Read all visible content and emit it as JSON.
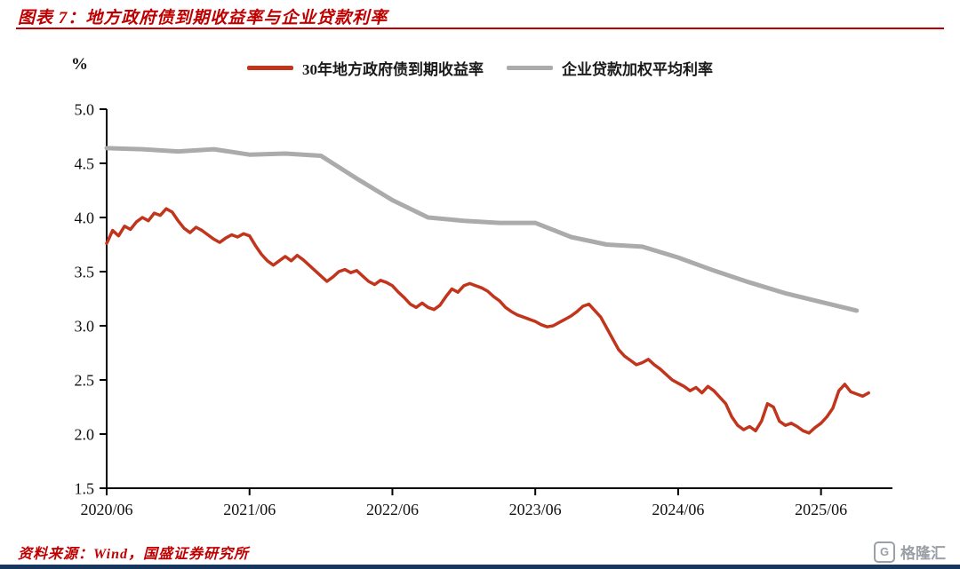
{
  "header": {
    "title": "图表 7：地方政府债到期收益率与企业贷款利率"
  },
  "footer": {
    "source": "资料来源：Wind，国盛证券研究所",
    "logo_text": "格隆汇",
    "logo_glyph": "G"
  },
  "colors": {
    "title_red": "#c00000",
    "series_red": "#c2351d",
    "series_gray": "#ababab",
    "bottom_navy": "#17375e",
    "axis_black": "#000000"
  },
  "chart_data": {
    "type": "line",
    "unit_label": "%",
    "ylim": [
      1.5,
      5.0
    ],
    "y_tick_labels": [
      "5.0",
      "4.5",
      "4.0",
      "3.5",
      "3.0",
      "2.5",
      "2.0",
      "1.5"
    ],
    "x_tick_labels": [
      "2020/06",
      "2021/06",
      "2022/06",
      "2023/06",
      "2024/06",
      "2025/06"
    ],
    "x_tick_months": [
      0,
      12,
      24,
      36,
      48,
      60
    ],
    "x_range_months": [
      0,
      66
    ],
    "grid": false,
    "legend_position": "top-center",
    "series": [
      {
        "name": "30年地方政府债到期收益率",
        "color": "#c2351d",
        "width": 3.5,
        "x_start": 0,
        "x_step": 0.5,
        "values": [
          3.76,
          3.88,
          3.83,
          3.92,
          3.89,
          3.96,
          4.0,
          3.97,
          4.04,
          4.02,
          4.08,
          4.05,
          3.97,
          3.9,
          3.86,
          3.91,
          3.88,
          3.84,
          3.8,
          3.77,
          3.81,
          3.84,
          3.82,
          3.85,
          3.83,
          3.74,
          3.66,
          3.6,
          3.56,
          3.6,
          3.64,
          3.6,
          3.65,
          3.61,
          3.56,
          3.51,
          3.46,
          3.41,
          3.45,
          3.5,
          3.52,
          3.49,
          3.51,
          3.46,
          3.41,
          3.38,
          3.42,
          3.4,
          3.37,
          3.31,
          3.26,
          3.2,
          3.17,
          3.21,
          3.17,
          3.15,
          3.19,
          3.27,
          3.34,
          3.31,
          3.37,
          3.39,
          3.37,
          3.35,
          3.32,
          3.27,
          3.23,
          3.17,
          3.13,
          3.1,
          3.08,
          3.06,
          3.04,
          3.01,
          2.99,
          3.0,
          3.03,
          3.06,
          3.09,
          3.13,
          3.18,
          3.2,
          3.14,
          3.08,
          2.98,
          2.88,
          2.78,
          2.72,
          2.68,
          2.64,
          2.66,
          2.69,
          2.64,
          2.6,
          2.55,
          2.5,
          2.47,
          2.44,
          2.4,
          2.43,
          2.38,
          2.44,
          2.4,
          2.34,
          2.28,
          2.16,
          2.08,
          2.04,
          2.07,
          2.03,
          2.12,
          2.28,
          2.25,
          2.12,
          2.08,
          2.1,
          2.07,
          2.03,
          2.01,
          2.06,
          2.1,
          2.16,
          2.24,
          2.4,
          2.46,
          2.39,
          2.37,
          2.35,
          2.38
        ]
      },
      {
        "name": "企业贷款加权平均利率",
        "color": "#ababab",
        "width": 5,
        "x_start": 0,
        "x_step": 3,
        "values": [
          4.64,
          4.63,
          4.61,
          4.63,
          4.58,
          4.59,
          4.57,
          4.36,
          4.16,
          4.0,
          3.97,
          3.95,
          3.95,
          3.82,
          3.75,
          3.73,
          3.63,
          3.51,
          3.4,
          3.3,
          3.22,
          3.14
        ]
      }
    ]
  }
}
